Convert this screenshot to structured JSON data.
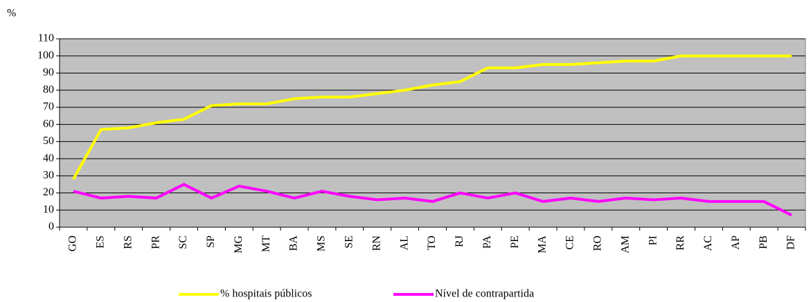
{
  "chart_data": {
    "type": "line",
    "ylabel": "%",
    "categories": [
      "GO",
      "ES",
      "RS",
      "PR",
      "SC",
      "SP",
      "MG",
      "MT",
      "BA",
      "MS",
      "SE",
      "RN",
      "AL",
      "TO",
      "RJ",
      "PA",
      "PE",
      "MA",
      "CE",
      "RO",
      "AM",
      "PI",
      "RR",
      "AC",
      "AP",
      "PB",
      "DF"
    ],
    "series": [
      {
        "name": "% hospitais públicos",
        "color": "#ffff00",
        "values": [
          28,
          57,
          58,
          61,
          63,
          71,
          72,
          72,
          75,
          76,
          76,
          78,
          80,
          83,
          85,
          93,
          93,
          95,
          95,
          96,
          97,
          97,
          100,
          100,
          100,
          100,
          100
        ]
      },
      {
        "name": "Nível de contrapartida",
        "color": "#ff00ff",
        "values": [
          21,
          17,
          18,
          17,
          25,
          17,
          24,
          21,
          17,
          21,
          18,
          16,
          17,
          15,
          20,
          17,
          20,
          15,
          17,
          15,
          17,
          16,
          17,
          15,
          15,
          15,
          7
        ]
      }
    ],
    "ylim": [
      0,
      110
    ],
    "yticks": [
      0,
      10,
      20,
      30,
      40,
      50,
      60,
      70,
      80,
      90,
      100,
      110
    ],
    "grid": true,
    "plot_background": "#c0c0c0",
    "legend": "bottom"
  }
}
